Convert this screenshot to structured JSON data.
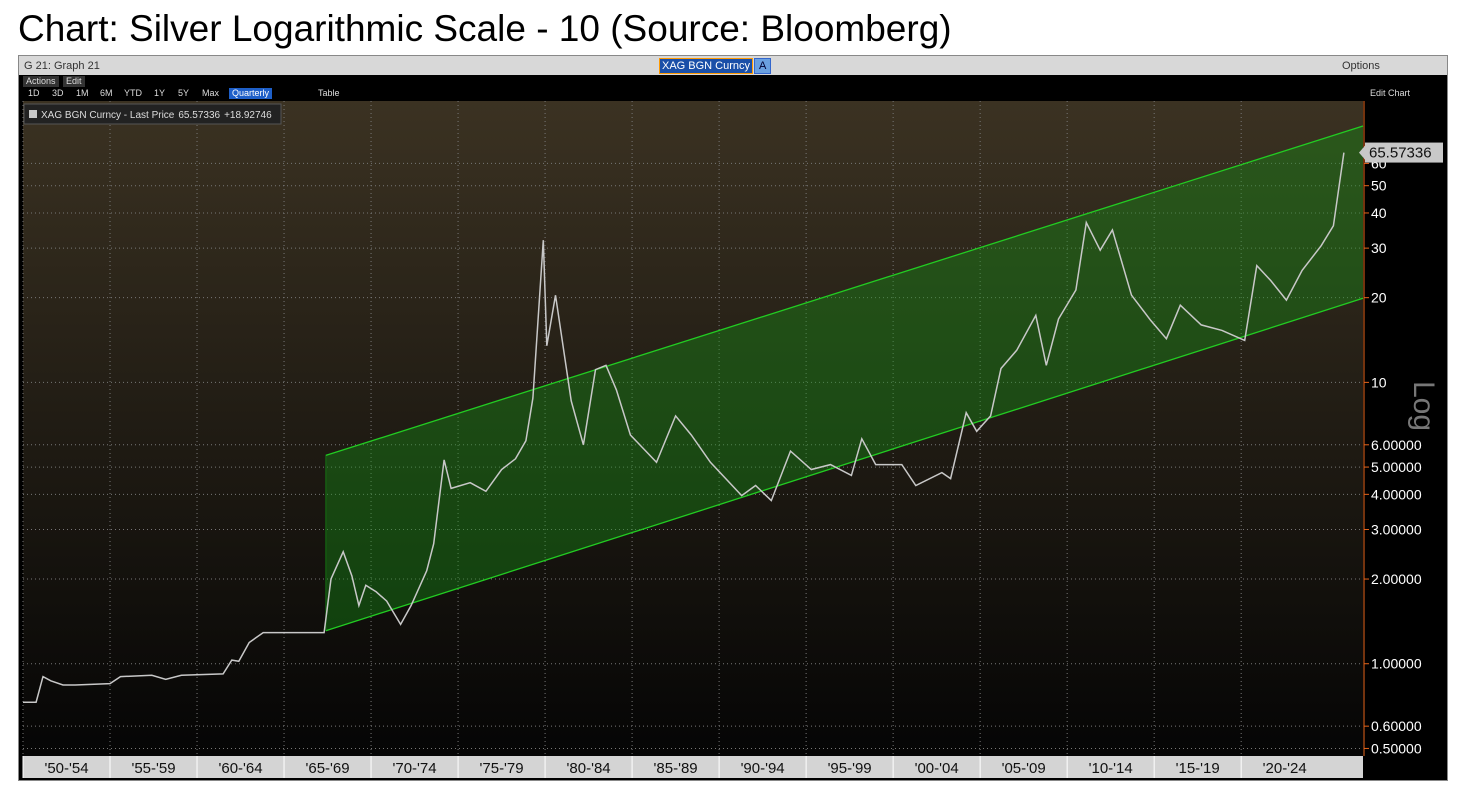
{
  "chart_data": {
    "type": "line",
    "title": "Chart: Silver Logarithmic Scale - 10 (Source: Bloomberg)",
    "log_scale": true,
    "grid": true,
    "axis_mode": "Log",
    "xlim": [
      1950,
      2027
    ],
    "ylim": [
      0.47,
      100
    ],
    "xticks": [
      {
        "value": 1950,
        "label": "'50-'54"
      },
      {
        "value": 1955,
        "label": "'55-'59"
      },
      {
        "value": 1960,
        "label": "'60-'64"
      },
      {
        "value": 1965,
        "label": "'65-'69"
      },
      {
        "value": 1970,
        "label": "'70-'74"
      },
      {
        "value": 1975,
        "label": "'75-'79"
      },
      {
        "value": 1980,
        "label": "'80-'84"
      },
      {
        "value": 1985,
        "label": "'85-'89"
      },
      {
        "value": 1990,
        "label": "'90-'94"
      },
      {
        "value": 1995,
        "label": "'95-'99"
      },
      {
        "value": 2000,
        "label": "'00-'04"
      },
      {
        "value": 2005,
        "label": "'05-'09"
      },
      {
        "value": 2010,
        "label": "'10-'14"
      },
      {
        "value": 2015,
        "label": "'15-'19"
      },
      {
        "value": 2020,
        "label": "'20-'24"
      }
    ],
    "yticks": [
      {
        "value": 0.5,
        "label": "0.50000"
      },
      {
        "value": 0.6,
        "label": "0.60000"
      },
      {
        "value": 1,
        "label": "1.00000"
      },
      {
        "value": 2,
        "label": "2.00000"
      },
      {
        "value": 3,
        "label": "3.00000"
      },
      {
        "value": 4,
        "label": "4.00000"
      },
      {
        "value": 5,
        "label": "5.00000"
      },
      {
        "value": 6,
        "label": "6.00000"
      },
      10,
      20,
      30,
      40,
      50,
      60
    ],
    "series": [
      {
        "name": "XAG BGN Curncy - Last Price",
        "color": "#c8c8c8",
        "x": [
          1950.0,
          1950.75,
          1951.15,
          1951.6,
          1952.3,
          1953.0,
          1955.0,
          1955.6,
          1957.4,
          1958.2,
          1959.1,
          1961.5,
          1962.0,
          1962.4,
          1963.0,
          1963.8,
          1967.3,
          1967.7,
          1968.4,
          1968.9,
          1969.3,
          1969.7,
          1970.3,
          1970.9,
          1971.7,
          1972.3,
          1973.2,
          1973.6,
          1974.2,
          1974.6,
          1975.7,
          1976.6,
          1977.5,
          1978.3,
          1978.9,
          1979.3,
          1979.9,
          1980.1,
          1980.6,
          1981.5,
          1982.2,
          1982.9,
          1983.5,
          1984.1,
          1984.9,
          1986.4,
          1987.5,
          1988.4,
          1989.5,
          1991.3,
          1992.1,
          1993.0,
          1994.1,
          1995.3,
          1996.4,
          1997.6,
          1998.2,
          1999.0,
          2000.5,
          2001.3,
          2002.8,
          2003.3,
          2004.2,
          2004.8,
          2005.6,
          2006.2,
          2007.1,
          2008.2,
          2008.8,
          2009.5,
          2010.5,
          2011.1,
          2011.9,
          2012.6,
          2013.7,
          2014.8,
          2015.7,
          2016.5,
          2017.7,
          2018.9,
          2020.2,
          2020.9,
          2021.7,
          2022.6,
          2023.5,
          2024.6,
          2025.3,
          2025.9
        ],
        "values": [
          0.73,
          0.73,
          0.9,
          0.87,
          0.84,
          0.84,
          0.85,
          0.9,
          0.91,
          0.88,
          0.91,
          0.92,
          1.03,
          1.02,
          1.19,
          1.29,
          1.29,
          2.0,
          2.5,
          2.05,
          1.61,
          1.9,
          1.8,
          1.67,
          1.38,
          1.61,
          2.14,
          2.67,
          5.3,
          4.2,
          4.4,
          4.1,
          4.9,
          5.35,
          6.2,
          8.8,
          32,
          13.5,
          20.4,
          8.6,
          6.0,
          11.1,
          11.5,
          9.4,
          6.5,
          5.2,
          7.6,
          6.5,
          5.2,
          3.96,
          4.3,
          3.8,
          5.7,
          4.9,
          5.1,
          4.67,
          6.3,
          5.1,
          5.1,
          4.3,
          4.78,
          4.55,
          7.8,
          6.7,
          7.6,
          11.2,
          13.0,
          17.3,
          11.5,
          16.8,
          21.3,
          37,
          29.5,
          34.8,
          20.4,
          16.6,
          14.3,
          18.8,
          16.0,
          15.3,
          14.1,
          26,
          23,
          19.6,
          25,
          30.6,
          36,
          65.57336
        ]
      }
    ],
    "change": "+18.92746",
    "channel": {
      "color": "#22cc22",
      "x": [
        1967.4,
        2027
      ],
      "upper": [
        5.5,
        81.5
      ],
      "lower": [
        1.31,
        19.9
      ]
    }
  },
  "ui": {
    "window_title": "G 21: Graph 21",
    "ticker": "XAG BGN Curncy",
    "ticker_button": "A",
    "options": "Options",
    "menus": [
      "Actions",
      "Edit"
    ],
    "buttons": [
      "1D",
      "3D",
      "1M",
      "6M",
      "YTD",
      "1Y",
      "5Y",
      "Max",
      "Quarterly",
      "Table"
    ],
    "edit_chart": "Edit Chart"
  }
}
